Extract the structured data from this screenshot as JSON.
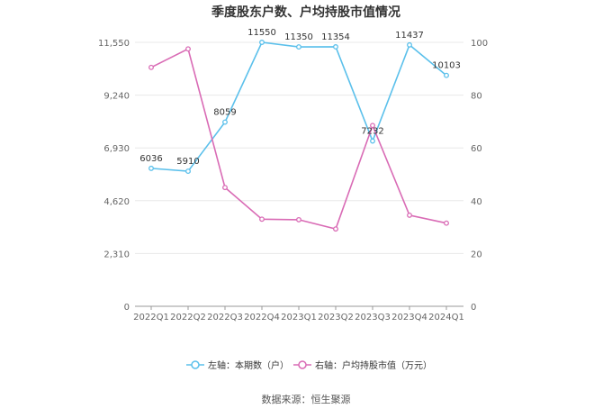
{
  "chart_data": {
    "type": "line",
    "title": "季度股东户数、户均持股市值情况",
    "categories": [
      "2022Q1",
      "2022Q2",
      "2022Q3",
      "2022Q4",
      "2023Q1",
      "2023Q2",
      "2023Q3",
      "2023Q4",
      "2024Q1"
    ],
    "y_left": {
      "ticks": [
        0,
        2310,
        4620,
        6930,
        9240,
        11550
      ],
      "tick_labels": [
        "0",
        "2,310",
        "4,620",
        "6,930",
        "9,240",
        "11,550"
      ],
      "ylim": [
        0,
        11550
      ]
    },
    "y_right": {
      "ticks": [
        0,
        20,
        40,
        60,
        80,
        100
      ],
      "tick_labels": [
        "0",
        "20",
        "40",
        "60",
        "80",
        "100"
      ],
      "ylim": [
        0,
        100
      ]
    },
    "series": [
      {
        "name": "左轴：本期数（户）",
        "axis": "left",
        "color": "#5bc0eb",
        "values": [
          6036,
          5910,
          8059,
          11550,
          11350,
          11354,
          7232,
          11437,
          10103
        ],
        "labels": [
          "6036",
          "5910",
          "8059",
          "11550",
          "11350",
          "11354",
          "7232",
          "11437",
          "10103"
        ]
      },
      {
        "name": "右轴：户均持股市值（万元）",
        "axis": "right",
        "color": "#d96bb5",
        "values": [
          90.5,
          97.5,
          45.0,
          33.0,
          32.8,
          29.3,
          68.5,
          34.5,
          31.5
        ]
      }
    ],
    "grid": true,
    "legend": "bottom"
  },
  "source": "数据来源：恒生聚源"
}
